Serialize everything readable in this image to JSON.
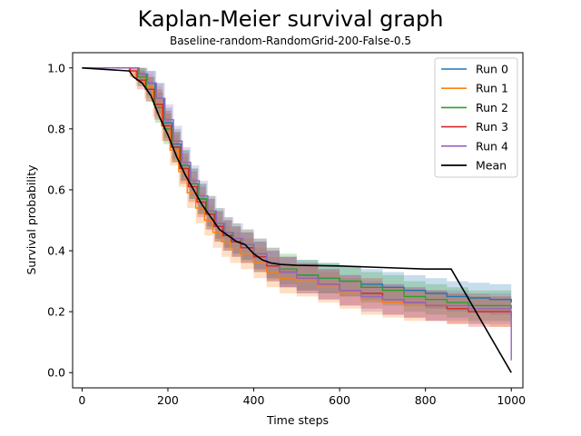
{
  "chart_data": {
    "type": "line",
    "title": "Kaplan-Meier survival graph",
    "subtitle": "Baseline-random-RandomGrid-200-False-0.5",
    "xlabel": "Time steps",
    "ylabel": "Survival probability",
    "xlim": [
      -22,
      1027
    ],
    "ylim": [
      -0.05,
      1.05
    ],
    "xticks": [
      0,
      200,
      400,
      600,
      800,
      1000
    ],
    "yticks": [
      0.0,
      0.2,
      0.4,
      0.6,
      0.8,
      1.0
    ],
    "xtick_labels": [
      "0",
      "200",
      "400",
      "600",
      "800",
      "1000"
    ],
    "ytick_labels": [
      "0.0",
      "0.2",
      "0.4",
      "0.6",
      "0.8",
      "1.0"
    ],
    "grid": false,
    "legend_position": "top-right",
    "series": [
      {
        "name": "Run 0",
        "color": "#1f77b4",
        "x": [
          0,
          115,
          130,
          150,
          170,
          190,
          210,
          230,
          250,
          270,
          290,
          310,
          330,
          350,
          370,
          400,
          430,
          460,
          500,
          550,
          600,
          650,
          700,
          750,
          800,
          850,
          900,
          950,
          1000,
          1000
        ],
        "y": [
          1.0,
          1.0,
          0.98,
          0.95,
          0.9,
          0.82,
          0.75,
          0.68,
          0.62,
          0.57,
          0.52,
          0.48,
          0.45,
          0.43,
          0.41,
          0.38,
          0.35,
          0.33,
          0.32,
          0.31,
          0.3,
          0.29,
          0.28,
          0.27,
          0.26,
          0.25,
          0.245,
          0.24,
          0.235,
          0.23
        ]
      },
      {
        "name": "Run 1",
        "color": "#ff7f0e",
        "x": [
          0,
          110,
          125,
          145,
          165,
          185,
          205,
          225,
          245,
          265,
          285,
          305,
          325,
          345,
          370,
          400,
          430,
          460,
          500,
          550,
          600,
          650,
          700,
          750,
          800,
          850,
          900,
          950,
          1000,
          1000
        ],
        "y": [
          1.0,
          0.99,
          0.97,
          0.94,
          0.89,
          0.81,
          0.73,
          0.66,
          0.59,
          0.54,
          0.5,
          0.46,
          0.43,
          0.41,
          0.39,
          0.36,
          0.33,
          0.31,
          0.3,
          0.28,
          0.26,
          0.24,
          0.23,
          0.22,
          0.22,
          0.21,
          0.21,
          0.2,
          0.19,
          0.19
        ]
      },
      {
        "name": "Run 2",
        "color": "#2ca02c",
        "x": [
          0,
          115,
          130,
          150,
          170,
          190,
          210,
          230,
          250,
          270,
          290,
          310,
          330,
          350,
          370,
          400,
          430,
          460,
          500,
          550,
          600,
          650,
          700,
          750,
          800,
          850,
          900,
          950,
          1000,
          1000
        ],
        "y": [
          1.0,
          1.0,
          0.97,
          0.93,
          0.87,
          0.8,
          0.74,
          0.68,
          0.62,
          0.57,
          0.53,
          0.49,
          0.46,
          0.44,
          0.42,
          0.39,
          0.36,
          0.34,
          0.32,
          0.31,
          0.3,
          0.28,
          0.27,
          0.25,
          0.24,
          0.23,
          0.22,
          0.22,
          0.21,
          0.21
        ]
      },
      {
        "name": "Run 3",
        "color": "#d62728",
        "x": [
          0,
          112,
          128,
          148,
          168,
          188,
          208,
          228,
          248,
          268,
          288,
          308,
          328,
          348,
          370,
          400,
          430,
          460,
          500,
          550,
          600,
          650,
          700,
          750,
          800,
          850,
          900,
          950,
          1000,
          1000
        ],
        "y": [
          1.0,
          0.99,
          0.96,
          0.93,
          0.88,
          0.81,
          0.74,
          0.67,
          0.61,
          0.56,
          0.52,
          0.48,
          0.45,
          0.43,
          0.41,
          0.38,
          0.35,
          0.33,
          0.31,
          0.29,
          0.27,
          0.26,
          0.24,
          0.23,
          0.22,
          0.21,
          0.2,
          0.2,
          0.19,
          0.18
        ]
      },
      {
        "name": "Run 4",
        "color": "#9467bd",
        "x": [
          0,
          118,
          133,
          153,
          173,
          193,
          213,
          233,
          253,
          273,
          293,
          313,
          333,
          353,
          375,
          400,
          430,
          460,
          500,
          550,
          600,
          650,
          700,
          750,
          800,
          850,
          900,
          950,
          999,
          1000
        ],
        "y": [
          1.0,
          1.0,
          0.98,
          0.95,
          0.9,
          0.83,
          0.76,
          0.69,
          0.63,
          0.58,
          0.53,
          0.49,
          0.46,
          0.44,
          0.42,
          0.39,
          0.36,
          0.33,
          0.31,
          0.29,
          0.27,
          0.25,
          0.24,
          0.23,
          0.22,
          0.22,
          0.21,
          0.21,
          0.2,
          0.04
        ]
      },
      {
        "name": "Mean",
        "color": "#000000",
        "x": [
          0,
          110,
          120,
          140,
          160,
          180,
          200,
          220,
          240,
          260,
          280,
          300,
          320,
          340,
          360,
          380,
          400,
          420,
          440,
          460,
          500,
          600,
          700,
          800,
          860,
          1000
        ],
        "y": [
          1.0,
          0.99,
          0.97,
          0.95,
          0.91,
          0.84,
          0.78,
          0.71,
          0.65,
          0.6,
          0.55,
          0.51,
          0.47,
          0.45,
          0.43,
          0.42,
          0.39,
          0.37,
          0.36,
          0.355,
          0.352,
          0.35,
          0.345,
          0.34,
          0.34,
          0.0
        ]
      }
    ],
    "bands": [
      {
        "series": "Run 0",
        "lower": [
          1.0,
          1.0,
          0.95,
          0.91,
          0.85,
          0.77,
          0.7,
          0.63,
          0.57,
          0.52,
          0.47,
          0.43,
          0.4,
          0.38,
          0.36,
          0.33,
          0.3,
          0.28,
          0.27,
          0.26,
          0.25,
          0.24,
          0.23,
          0.22,
          0.21,
          0.2,
          0.195,
          0.19,
          0.18,
          0.18
        ],
        "upper": [
          1.0,
          1.0,
          1.0,
          0.99,
          0.95,
          0.87,
          0.8,
          0.73,
          0.67,
          0.62,
          0.57,
          0.53,
          0.5,
          0.48,
          0.46,
          0.43,
          0.4,
          0.38,
          0.37,
          0.36,
          0.35,
          0.34,
          0.33,
          0.32,
          0.31,
          0.3,
          0.295,
          0.29,
          0.29,
          0.29
        ]
      },
      {
        "series": "Run 1",
        "lower": [
          1.0,
          0.97,
          0.94,
          0.9,
          0.84,
          0.76,
          0.68,
          0.61,
          0.54,
          0.49,
          0.45,
          0.41,
          0.38,
          0.36,
          0.34,
          0.31,
          0.28,
          0.26,
          0.25,
          0.23,
          0.21,
          0.19,
          0.18,
          0.17,
          0.17,
          0.16,
          0.16,
          0.15,
          0.14,
          0.14
        ],
        "upper": [
          1.0,
          1.0,
          1.0,
          0.98,
          0.94,
          0.86,
          0.78,
          0.71,
          0.64,
          0.59,
          0.55,
          0.51,
          0.48,
          0.46,
          0.44,
          0.41,
          0.38,
          0.36,
          0.35,
          0.33,
          0.31,
          0.29,
          0.28,
          0.27,
          0.27,
          0.26,
          0.26,
          0.25,
          0.24,
          0.24
        ]
      },
      {
        "series": "Run 2",
        "lower": [
          1.0,
          1.0,
          0.94,
          0.89,
          0.82,
          0.75,
          0.69,
          0.63,
          0.57,
          0.52,
          0.48,
          0.44,
          0.41,
          0.39,
          0.37,
          0.34,
          0.31,
          0.29,
          0.27,
          0.26,
          0.25,
          0.23,
          0.22,
          0.2,
          0.19,
          0.18,
          0.17,
          0.17,
          0.16,
          0.16
        ],
        "upper": [
          1.0,
          1.0,
          1.0,
          0.97,
          0.92,
          0.85,
          0.79,
          0.73,
          0.67,
          0.62,
          0.58,
          0.54,
          0.51,
          0.49,
          0.47,
          0.44,
          0.41,
          0.39,
          0.37,
          0.36,
          0.35,
          0.33,
          0.32,
          0.3,
          0.29,
          0.28,
          0.27,
          0.27,
          0.26,
          0.26
        ]
      },
      {
        "series": "Run 3",
        "lower": [
          1.0,
          0.97,
          0.93,
          0.89,
          0.83,
          0.76,
          0.69,
          0.62,
          0.56,
          0.51,
          0.47,
          0.43,
          0.4,
          0.38,
          0.36,
          0.33,
          0.3,
          0.28,
          0.26,
          0.24,
          0.22,
          0.21,
          0.19,
          0.18,
          0.17,
          0.16,
          0.15,
          0.15,
          0.14,
          0.13
        ],
        "upper": [
          1.0,
          1.0,
          0.99,
          0.97,
          0.93,
          0.86,
          0.79,
          0.72,
          0.66,
          0.61,
          0.57,
          0.53,
          0.5,
          0.48,
          0.46,
          0.43,
          0.4,
          0.38,
          0.36,
          0.34,
          0.32,
          0.31,
          0.29,
          0.28,
          0.27,
          0.26,
          0.25,
          0.25,
          0.24,
          0.23
        ]
      },
      {
        "series": "Run 4",
        "lower": [
          1.0,
          1.0,
          0.95,
          0.91,
          0.85,
          0.78,
          0.71,
          0.64,
          0.58,
          0.53,
          0.48,
          0.44,
          0.41,
          0.39,
          0.37,
          0.34,
          0.31,
          0.28,
          0.26,
          0.24,
          0.22,
          0.2,
          0.19,
          0.18,
          0.17,
          0.17,
          0.16,
          0.16,
          0.15,
          0.0
        ],
        "upper": [
          1.0,
          1.0,
          1.0,
          0.99,
          0.95,
          0.88,
          0.81,
          0.74,
          0.68,
          0.63,
          0.58,
          0.54,
          0.51,
          0.49,
          0.47,
          0.44,
          0.41,
          0.38,
          0.36,
          0.34,
          0.32,
          0.3,
          0.29,
          0.28,
          0.27,
          0.27,
          0.26,
          0.26,
          0.25,
          0.1
        ]
      }
    ]
  }
}
